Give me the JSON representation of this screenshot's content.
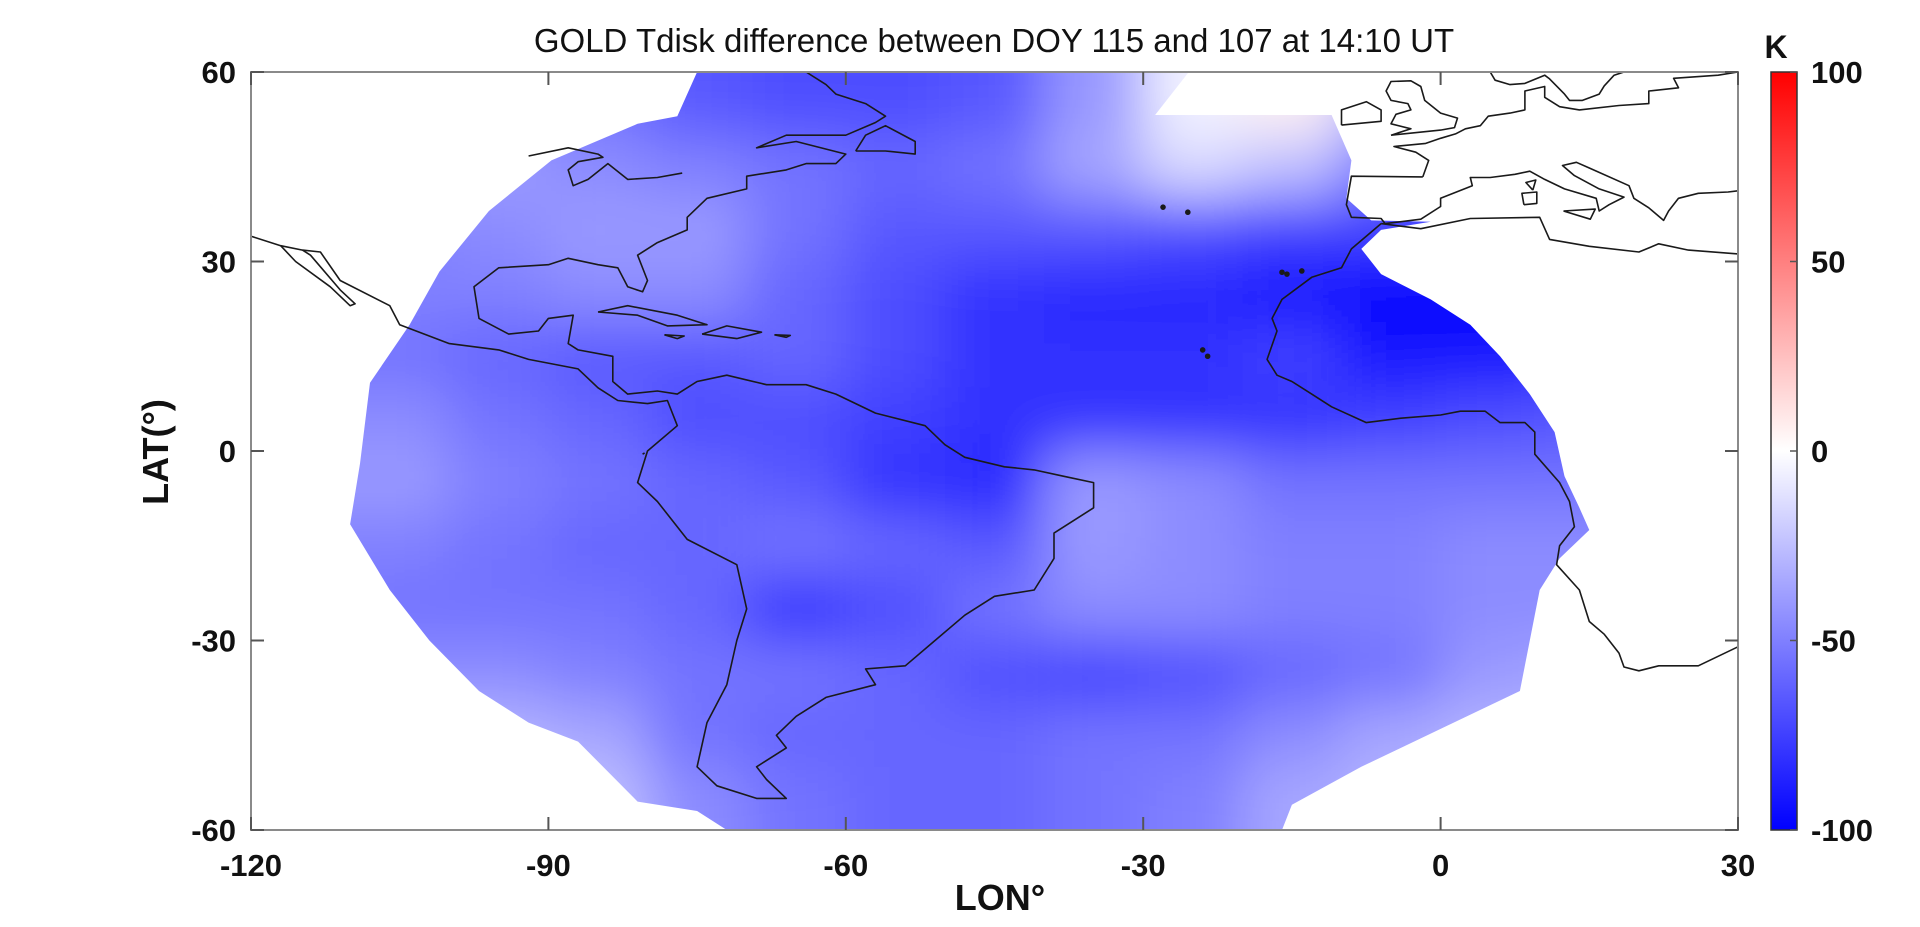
{
  "chart_data": {
    "type": "heatmap",
    "title": "GOLD Tdisk difference between DOY 115 and 107 at 14:10 UT",
    "xlabel": "LON°",
    "ylabel": "LAT(°)",
    "xlim": [
      -120,
      30
    ],
    "ylim": [
      -60,
      60
    ],
    "xticks": [
      -120,
      -90,
      -60,
      -30,
      0,
      30
    ],
    "yticks": [
      -60,
      -30,
      0,
      30,
      60
    ],
    "xtick_labels": [
      "-120",
      "-90",
      "-60",
      "-30",
      "0",
      "30"
    ],
    "ytick_labels": [
      "-60",
      "-30",
      "0",
      "30",
      "60"
    ],
    "colorbar": {
      "label": "K",
      "range": [
        -100,
        100
      ],
      "ticks": [
        100,
        50,
        0,
        -50,
        -100
      ],
      "tick_labels": [
        "100",
        "50",
        "0",
        "-50",
        "-100"
      ],
      "colormap": "blue-white-red",
      "low_color": "#0000ff",
      "mid_color": "#ffffff",
      "high_color": "#ff0000"
    },
    "grid": false,
    "cell_lon": [
      -115,
      -105,
      -95,
      -85,
      -75,
      -65,
      -55,
      -45,
      -35,
      -25,
      -15,
      -5,
      5,
      15
    ],
    "cell_lat": [
      55,
      45,
      35,
      25,
      15,
      5,
      -5,
      -15,
      -25,
      -35,
      -45,
      -55
    ],
    "values": [
      [
        -40,
        -40,
        -45,
        -55,
        -65,
        -70,
        -70,
        -65,
        -40,
        -5,
        5,
        -30,
        -40,
        -40
      ],
      [
        -40,
        -40,
        -40,
        -45,
        -50,
        -55,
        -60,
        -55,
        -35,
        -15,
        -25,
        -55,
        -60,
        -60
      ],
      [
        -50,
        -50,
        -45,
        -40,
        -40,
        -55,
        -65,
        -65,
        -65,
        -70,
        -75,
        -75,
        -80,
        -80
      ],
      [
        -50,
        -50,
        -50,
        -45,
        -45,
        -60,
        -70,
        -80,
        -85,
        -85,
        -90,
        -100,
        -100,
        -95
      ],
      [
        -55,
        -55,
        -60,
        -65,
        -65,
        -60,
        -70,
        -80,
        -80,
        -80,
        -75,
        -90,
        -90,
        -85
      ],
      [
        -45,
        -45,
        -55,
        -60,
        -70,
        -70,
        -75,
        -80,
        -80,
        -80,
        -80,
        -75,
        -70,
        -65
      ],
      [
        -40,
        -40,
        -50,
        -55,
        -60,
        -65,
        -80,
        -85,
        -40,
        -45,
        -55,
        -55,
        -55,
        -55
      ],
      [
        -50,
        -50,
        -55,
        -60,
        -60,
        -55,
        -60,
        -65,
        -40,
        -45,
        -50,
        -50,
        -45,
        -45
      ],
      [
        -50,
        -55,
        -55,
        -55,
        -60,
        -80,
        -70,
        -55,
        -45,
        -45,
        -50,
        -50,
        -45,
        -45
      ],
      [
        -45,
        -45,
        -45,
        -50,
        -55,
        -55,
        -60,
        -70,
        -75,
        -70,
        -60,
        -55,
        -40,
        -35
      ],
      [
        -30,
        -30,
        -30,
        -35,
        -55,
        -60,
        -60,
        -60,
        -55,
        -55,
        -45,
        -35,
        -30,
        -30
      ],
      [
        -20,
        -20,
        -20,
        -25,
        -45,
        -55,
        -60,
        -60,
        -55,
        -50,
        -35,
        -30,
        -25,
        -25
      ]
    ],
    "coverage_outline": [
      [
        -75,
        60
      ],
      [
        -25.4,
        60
      ],
      [
        -28.8,
        53.2
      ],
      [
        -11,
        53.2
      ],
      [
        -9,
        46
      ],
      [
        -9.5,
        40
      ],
      [
        -7,
        36.5
      ],
      [
        -1,
        36.3
      ],
      [
        -6,
        35
      ],
      [
        -8,
        32
      ],
      [
        -6,
        28
      ],
      [
        -1,
        24
      ],
      [
        3,
        20
      ],
      [
        6,
        15
      ],
      [
        9,
        9
      ],
      [
        11.5,
        3
      ],
      [
        12.5,
        -4
      ],
      [
        14,
        -9
      ],
      [
        15,
        -12.5
      ],
      [
        12,
        -17
      ],
      [
        10,
        -22
      ],
      [
        9,
        -30
      ],
      [
        8,
        -38
      ],
      [
        0,
        -44
      ],
      [
        -8,
        -50
      ],
      [
        -15,
        -56
      ],
      [
        -16,
        -60
      ],
      [
        -72,
        -60
      ],
      [
        -75,
        -57
      ],
      [
        -81,
        -55.5
      ],
      [
        -87,
        -46
      ],
      [
        -92,
        -43
      ],
      [
        -97,
        -38
      ],
      [
        -102,
        -30
      ],
      [
        -106,
        -22
      ],
      [
        -110,
        -11.6
      ],
      [
        -109,
        -2
      ],
      [
        -108,
        10.8
      ],
      [
        -104,
        20
      ],
      [
        -101,
        28.4
      ],
      [
        -96,
        38
      ],
      [
        -89.7,
        46
      ],
      [
        -81,
        51.8
      ],
      [
        -77,
        53
      ],
      [
        -75,
        60
      ]
    ]
  }
}
